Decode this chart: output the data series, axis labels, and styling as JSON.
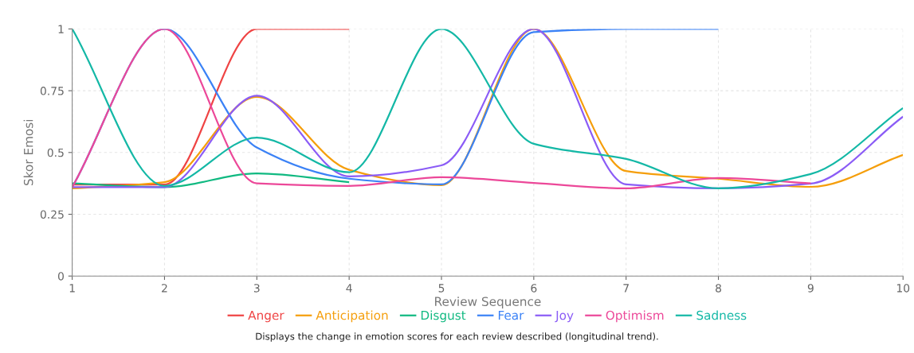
{
  "chart_data": {
    "type": "line",
    "xlabel": "Review Sequence",
    "ylabel": "Skor Emosi",
    "x": [
      1,
      2,
      3,
      4,
      5,
      6,
      7,
      8,
      9,
      10
    ],
    "xlim": [
      1,
      10
    ],
    "xticks": [
      1,
      2,
      3,
      4,
      5,
      6,
      7,
      8,
      9,
      10
    ],
    "ylim": [
      0,
      1
    ],
    "yticks": [
      0,
      0.25,
      0.5,
      0.75,
      1
    ],
    "grid": true,
    "legend": "bottom",
    "line_style": "solid",
    "annotations": [
      "Displays the change in emotion scores for each review described (longitudinal trend)."
    ],
    "series": [
      {
        "name": "Anger",
        "color": "#ef4444",
        "values": [
          0.37,
          0.37,
          1,
          1,
          null,
          null,
          null,
          null,
          null,
          null
        ]
      },
      {
        "name": "Anticipation",
        "color": "#f59e0b",
        "values": [
          0.355,
          0.38,
          0.725,
          0.43,
          0.368,
          1,
          0.425,
          0.394,
          0.361,
          0.49
        ]
      },
      {
        "name": "Disgust",
        "color": "#10b981",
        "values": [
          0.375,
          0.36,
          0.415,
          0.38,
          null,
          null,
          null,
          null,
          null,
          null
        ]
      },
      {
        "name": "Fear",
        "color": "#3b82f6",
        "values": [
          0.36,
          1,
          0.52,
          0.394,
          0.371,
          0.987,
          1,
          1,
          null,
          null
        ]
      },
      {
        "name": "Joy",
        "color": "#8b5cf6",
        "values": [
          0.36,
          0.36,
          0.73,
          0.403,
          0.448,
          1,
          0.371,
          0.355,
          0.374,
          0.645
        ]
      },
      {
        "name": "Optimism",
        "color": "#ec4899",
        "values": [
          0.36,
          1,
          0.375,
          0.365,
          0.4,
          0.377,
          0.355,
          0.397,
          0.375,
          null
        ]
      },
      {
        "name": "Sadness",
        "color": "#14b8a6",
        "values": [
          1,
          0.365,
          0.56,
          0.42,
          1,
          0.535,
          0.474,
          0.355,
          0.413,
          0.68
        ]
      }
    ]
  }
}
